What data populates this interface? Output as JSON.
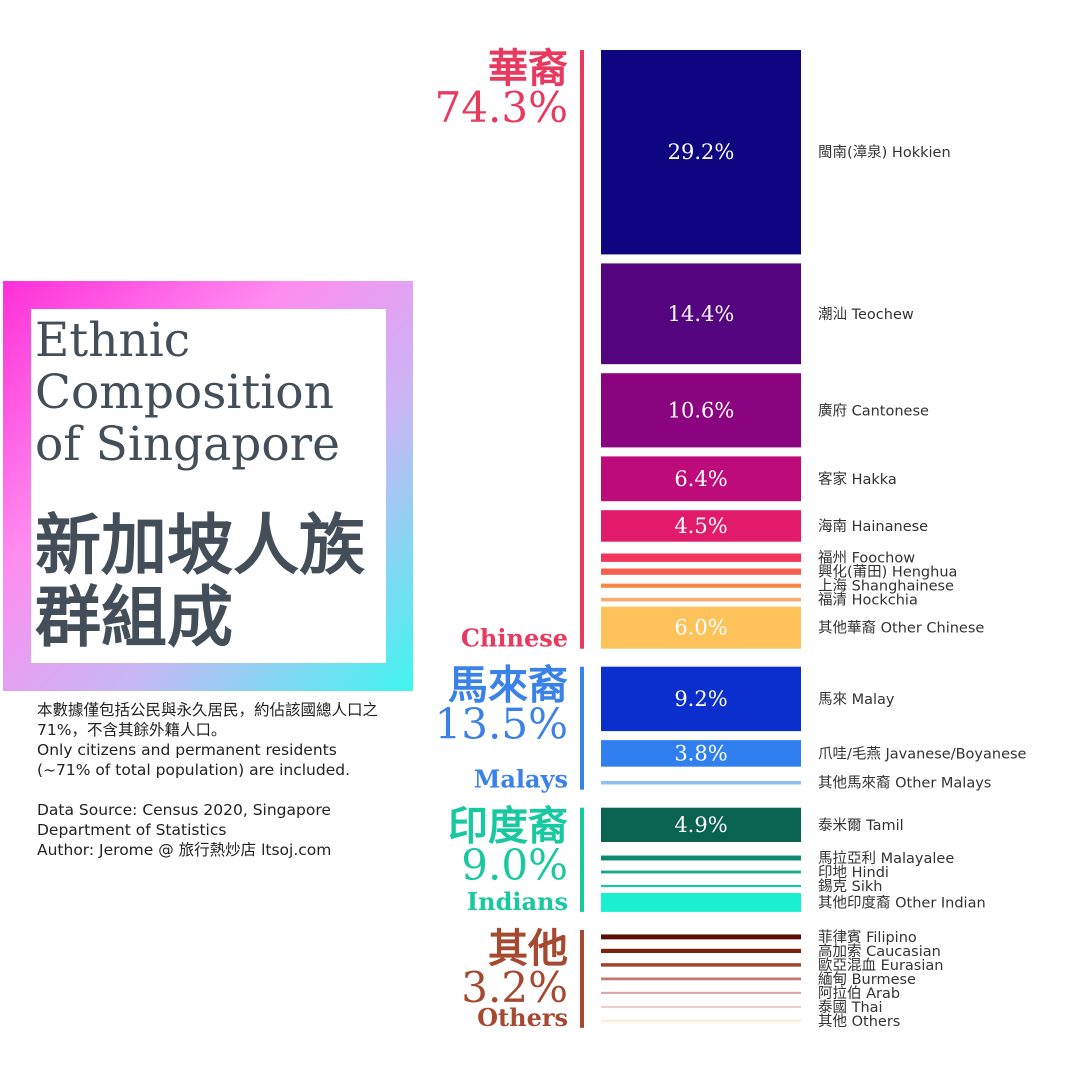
{
  "chart_data": {
    "type": "bar",
    "title": "Ethnic Composition of Singapore",
    "title_zh": "新加坡人族群組成",
    "note_zh": "本數據僅包括公民與永久居民，約佔該國總人口之71%，不含其餘外籍人口。",
    "note_en": "Only citizens and permanent residents (~71% of total population) are included.",
    "source": "Data Source: Census 2020, Singapore Department of Statistics",
    "author": "Author: Jerome @ 旅行熱炒店 ltsoj.com",
    "groups": [
      {
        "name_zh": "華裔",
        "name": "Chinese",
        "value": 74.3,
        "value_label": "74.3%",
        "color": "#e8395f",
        "categories": [
          "閩南(漳泉) Hokkien",
          "潮汕 Teochew",
          "廣府 Cantonese",
          "客家 Hakka",
          "海南 Hainanese",
          "福州 Foochow",
          "興化(莆田) Henghua",
          "上海 Shanghainese",
          "福清 Hockchia",
          "其他華裔 Other Chinese"
        ],
        "values": [
          29.2,
          14.4,
          10.6,
          6.4,
          4.5,
          1.2,
          0.9,
          0.6,
          0.5,
          6.0
        ],
        "value_labels": [
          "29.2%",
          "14.4%",
          "10.6%",
          "6.4%",
          "4.5%",
          null,
          null,
          null,
          null,
          "6.0%"
        ],
        "colors": [
          "#0e0680",
          "#55047f",
          "#8a0480",
          "#be0b7a",
          "#e21a6a",
          "#f0365a",
          "#f5604e",
          "#f8864a",
          "#fba96a",
          "#fdc35a"
        ]
      },
      {
        "name_zh": "馬來裔",
        "name": "Malays",
        "value": 13.5,
        "value_label": "13.5%",
        "color": "#3b82e8",
        "categories": [
          "馬來 Malay",
          "爪哇/毛燕 Javanese/Boyanese",
          "其他馬來裔 Other Malays"
        ],
        "values": [
          9.2,
          3.8,
          0.5
        ],
        "value_labels": [
          "9.2%",
          "3.8%",
          null
        ],
        "colors": [
          "#0b2fcc",
          "#2f80ee",
          "#8cc0f5"
        ]
      },
      {
        "name_zh": "印度裔",
        "name": "Indians",
        "value": 9.0,
        "value_label": "9.0%",
        "color": "#18c9a0",
        "categories": [
          "泰米爾 Tamil",
          "馬拉亞利 Malayalee",
          "印地 Hindi",
          "錫克 Sikh",
          "其他印度裔 Other Indian"
        ],
        "values": [
          4.9,
          0.7,
          0.4,
          0.3,
          2.7
        ],
        "value_labels": [
          "4.9%",
          null,
          null,
          null,
          null
        ],
        "colors": [
          "#0a6350",
          "#0f8a70",
          "#13a98a",
          "#18c6a3",
          "#1af0d0"
        ]
      },
      {
        "name_zh": "其他",
        "name": "Others",
        "value": 3.2,
        "value_label": "3.2%",
        "color": "#a54a30",
        "categories": [
          "菲律賓 Filipino",
          "高加索 Caucasian",
          "歐亞混血 Eurasian",
          "緬甸 Burmese",
          "阿拉伯 Arab",
          "泰國 Thai",
          "其他 Others"
        ],
        "values": [
          0.7,
          0.6,
          0.5,
          0.4,
          0.3,
          0.3,
          0.4
        ],
        "value_labels": [
          null,
          null,
          null,
          null,
          null,
          null,
          null
        ],
        "colors": [
          "#5a0e08",
          "#7a2410",
          "#a0442a",
          "#c07a70",
          "#d8a8a8",
          "#e8d0d0",
          "#fbeedd"
        ]
      }
    ]
  }
}
